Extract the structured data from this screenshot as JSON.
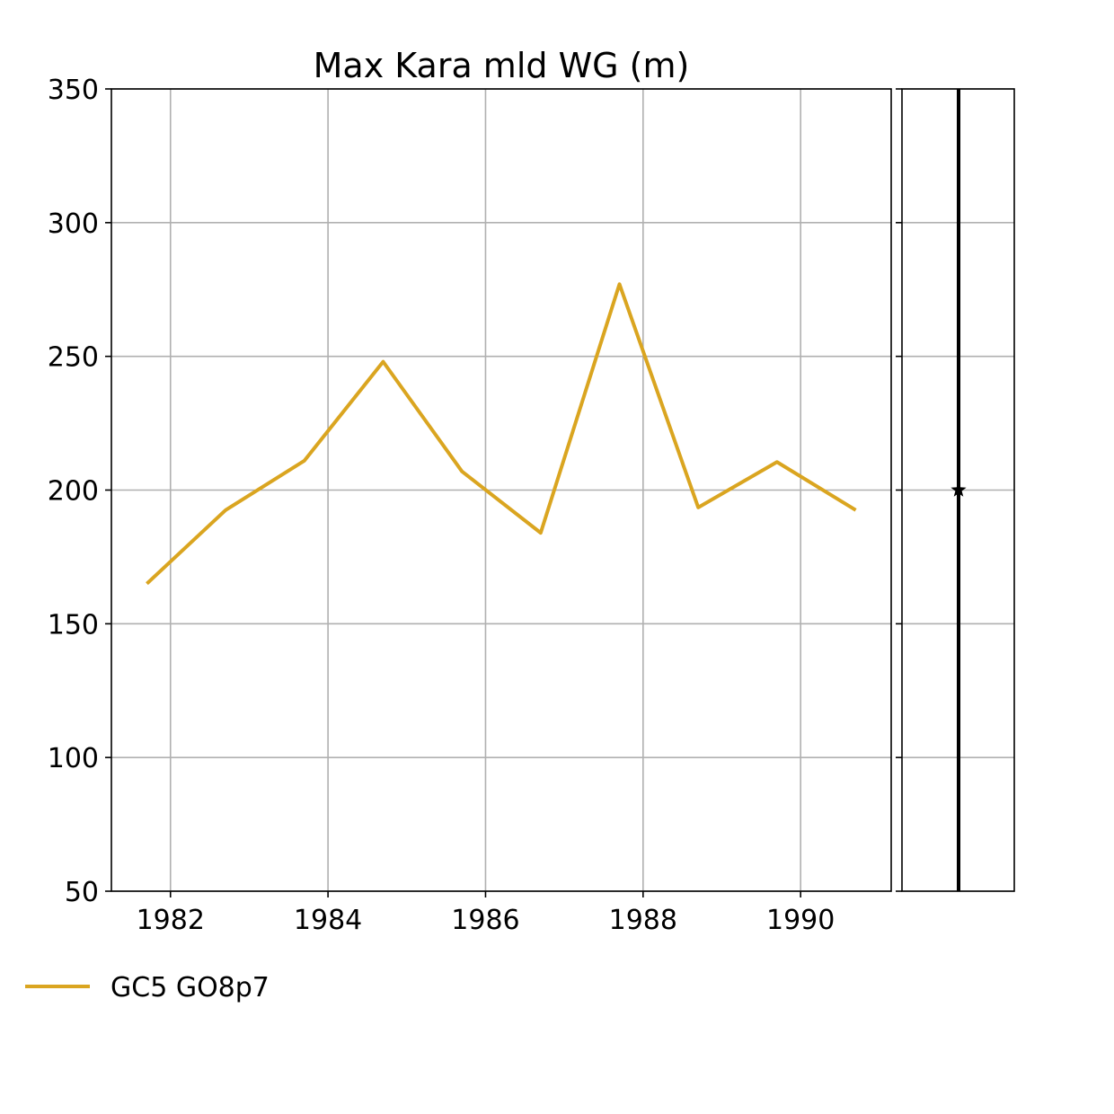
{
  "chart_data": {
    "type": "line",
    "title": "Max Kara mld WG (m)",
    "xlabel": "",
    "ylabel": "",
    "x": [
      1981.7,
      1982.7,
      1983.7,
      1984.7,
      1985.7,
      1986.7,
      1987.7,
      1988.7,
      1989.7,
      1990.7
    ],
    "series": [
      {
        "name": "GC5 GO8p7",
        "color": "#DAA520",
        "values": [
          165,
          192.5,
          211,
          248,
          207,
          184,
          277,
          193.5,
          210.5,
          192.5
        ]
      }
    ],
    "xlim": [
      1981.25,
      1991.15
    ],
    "ylim": [
      50,
      350
    ],
    "x_ticks": [
      "1982",
      "1984",
      "1986",
      "1988",
      "1990"
    ],
    "x_tick_values": [
      1982,
      1984,
      1986,
      1988,
      1990
    ],
    "y_ticks": [
      "50",
      "100",
      "150",
      "200",
      "250",
      "300",
      "350"
    ],
    "y_tick_values": [
      50,
      100,
      150,
      200,
      250,
      300,
      350
    ],
    "grid": true,
    "legend_position": "bottom-left",
    "side_panel": {
      "type": "marker",
      "marker": "star",
      "value": 200,
      "line_color": "#000000"
    }
  }
}
